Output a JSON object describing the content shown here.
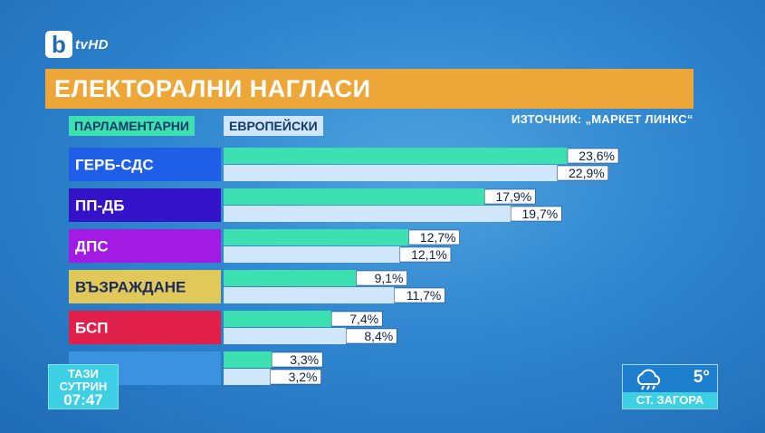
{
  "logo": {
    "letter": "b",
    "suffix": "tvHD"
  },
  "title": "ЕЛЕКТОРАЛНИ НАГЛАСИ",
  "source": "ИЗТОЧНИК: „МАРКЕТ ЛИНКС“",
  "colors": {
    "parliamentary": "#3de0b0",
    "european": "#cfe6fb",
    "title_bg": "#eda638"
  },
  "chart_data": {
    "type": "bar",
    "orientation": "horizontal",
    "categories": [
      "ГЕРБ-СДС",
      "ПП-ДБ",
      "ДПС",
      "ВЪЗРАЖДАНЕ",
      "БСП",
      ""
    ],
    "category_colors": [
      "#1f5ee6",
      "#3513c9",
      "#a31be3",
      "#e0c95a",
      "#e0204a",
      "#3b93df"
    ],
    "category_text_colors": [
      "#ffffff",
      "#ffffff",
      "#ffffff",
      "#1a2a5a",
      "#ffffff",
      "#ffffff"
    ],
    "series": [
      {
        "name": "ПАРЛАМЕНТАРНИ",
        "values": [
          23.6,
          17.9,
          12.7,
          9.1,
          7.4,
          3.3
        ],
        "labels": [
          "23,6%",
          "17,9%",
          "12,7%",
          "9,1%",
          "7,4%",
          "3,3%"
        ]
      },
      {
        "name": "ЕВРОПЕЙСКИ",
        "values": [
          22.9,
          19.7,
          12.1,
          11.7,
          8.4,
          3.2
        ],
        "labels": [
          "22,9%",
          "19,7%",
          "12,1%",
          "11,7%",
          "8,4%",
          "3,2%"
        ]
      }
    ],
    "legend": "top-left"
  },
  "clock": {
    "line1": "ТАЗИ",
    "line2": "СУТРИН",
    "time": "07:47"
  },
  "weather": {
    "temp": "5°",
    "city": "СТ. ЗАГОРА",
    "icon": "rain-cloud-icon"
  }
}
